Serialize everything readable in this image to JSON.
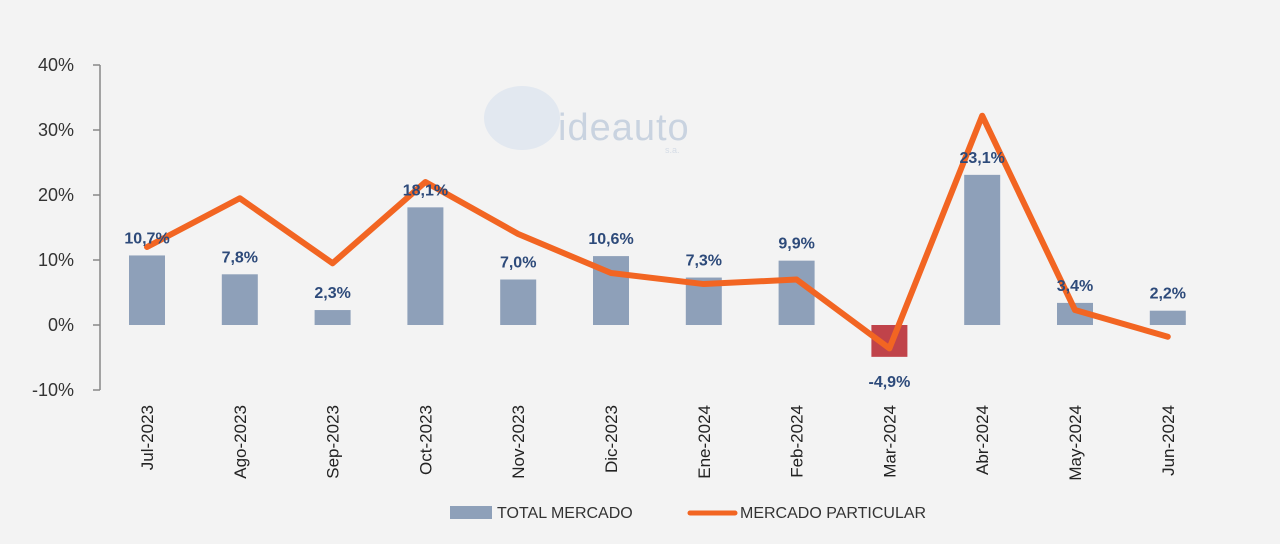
{
  "chart_data": {
    "type": "bar+line",
    "categories": [
      "Jul-2023",
      "Ago-2023",
      "Sep-2023",
      "Oct-2023",
      "Nov-2023",
      "Dic-2023",
      "Ene-2024",
      "Feb-2024",
      "Mar-2024",
      "Abr-2024",
      "May-2024",
      "Jun-2024"
    ],
    "series": [
      {
        "name": "TOTAL MERCADO",
        "type": "bar",
        "values": [
          10.7,
          7.8,
          2.3,
          18.1,
          7.0,
          10.6,
          7.3,
          9.9,
          -4.9,
          23.1,
          3.4,
          2.2
        ],
        "labels": [
          "10,7%",
          "7,8%",
          "2,3%",
          "18,1%",
          "7,0%",
          "10,6%",
          "7,3%",
          "9,9%",
          "-4,9%",
          "23,1%",
          "3,4%",
          "2,2%"
        ]
      },
      {
        "name": "MERCADO PARTICULAR",
        "type": "line",
        "values": [
          12,
          19.5,
          9.5,
          22,
          14,
          8,
          6.3,
          7,
          -3.6,
          32.2,
          2.3,
          -1.8
        ]
      }
    ],
    "y_ticks": [
      40,
      30,
      20,
      10,
      0,
      -10
    ],
    "y_tick_labels": [
      "40%",
      "30%",
      "20%",
      "10%",
      "0%",
      "-10%"
    ],
    "ylim": [
      -10,
      40
    ],
    "legend_position": "bottom",
    "colors": {
      "bar": "#8ea0b9",
      "bar_negative": "#c0434a",
      "line": "#f26522",
      "label": "#2d4a7a",
      "label_negative": "#c0343d",
      "tick_negative": "#d0202a"
    }
  },
  "watermark": {
    "text": "ideauto",
    "sub": "s.a."
  }
}
